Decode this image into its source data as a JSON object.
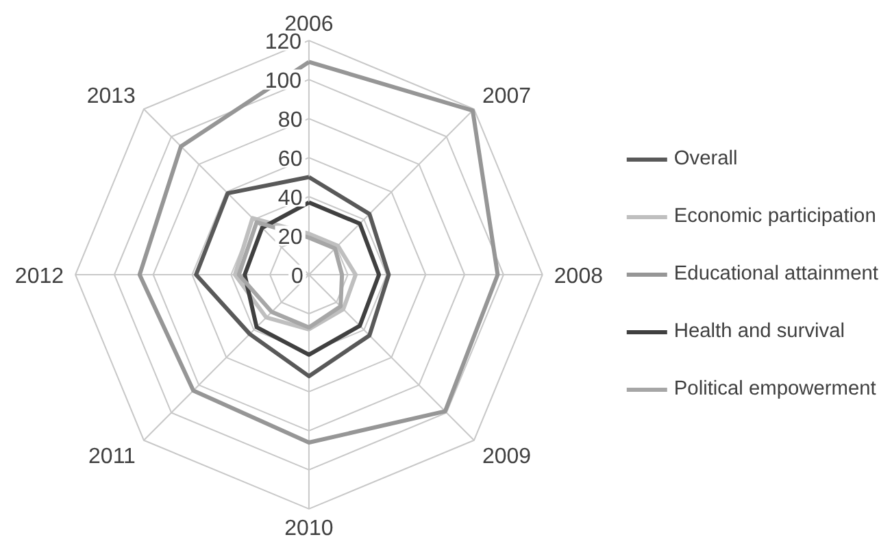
{
  "chart_data": {
    "type": "radar",
    "categories": [
      "2006",
      "2007",
      "2008",
      "2009",
      "2010",
      "2011",
      "2012",
      "2013"
    ],
    "ylim": [
      0,
      120
    ],
    "yticks": [
      0,
      20,
      40,
      60,
      80,
      100,
      120
    ],
    "grid": true,
    "legend": "right",
    "marker": "none",
    "line_style": "solid",
    "series": [
      {
        "name": "Overall",
        "color": "#595959",
        "values": [
          50,
          44,
          41,
          44,
          52,
          43,
          58,
          59
        ]
      },
      {
        "name": "Economic participation",
        "color": "#bfbfbf",
        "values": [
          21,
          21,
          24,
          25,
          28,
          31,
          38,
          41
        ]
      },
      {
        "name": "Educational attainment",
        "color": "#969696",
        "values": [
          109,
          119,
          97,
          99,
          86,
          84,
          87,
          93
        ]
      },
      {
        "name": "Health and survival",
        "color": "#404040",
        "values": [
          37,
          37,
          36,
          37,
          41,
          38,
          33,
          34
        ]
      },
      {
        "name": "Political empowerment",
        "color": "#a6a6a6",
        "values": [
          19,
          19,
          17,
          23,
          27,
          27,
          36,
          38
        ]
      }
    ]
  }
}
